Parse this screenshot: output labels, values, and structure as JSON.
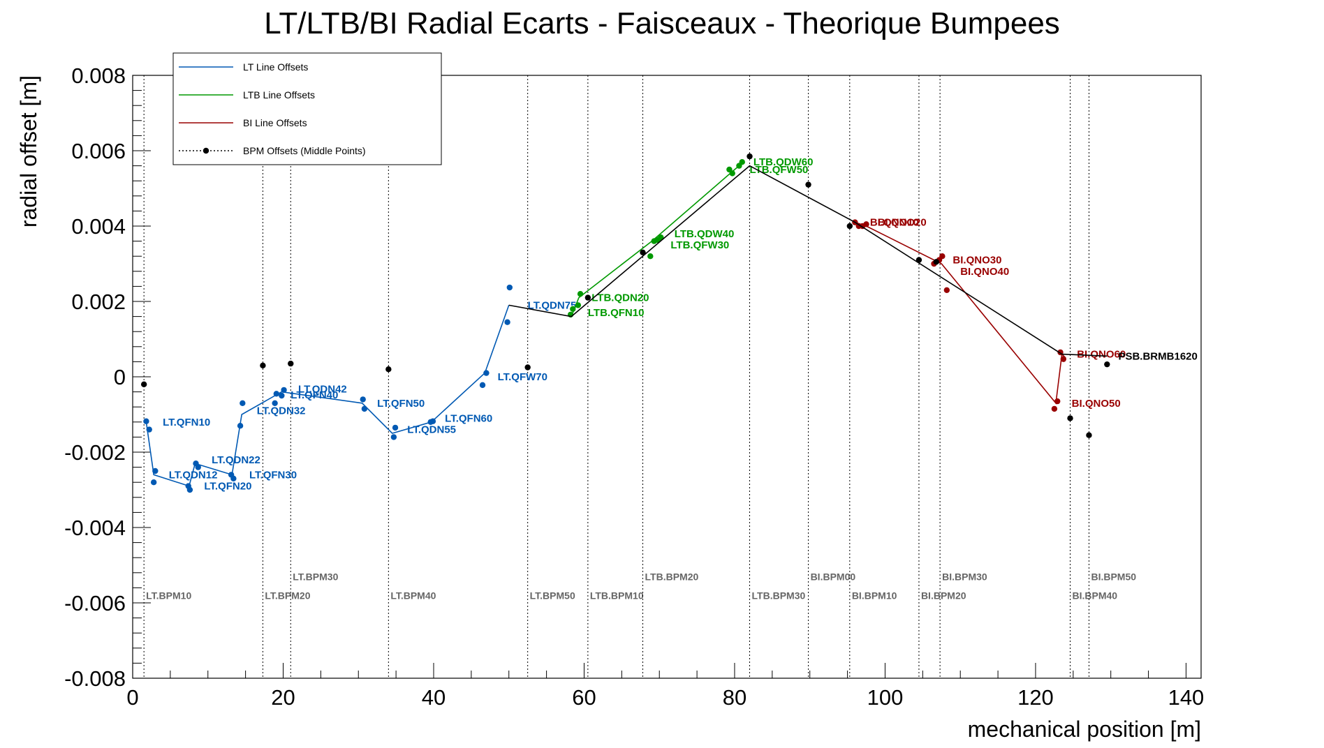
{
  "chart_data": {
    "type": "line",
    "title": "LT/LTB/BI Radial Ecarts - Faisceaux - Theorique Bumpees",
    "xlabel": "mechanical position [m]",
    "ylabel": "radial offset [m]",
    "xlim": [
      0,
      142
    ],
    "ylim": [
      -0.008,
      0.008
    ],
    "x_ticks": [
      0,
      20,
      40,
      60,
      80,
      100,
      120,
      140
    ],
    "x_tick_labels": [
      "0",
      "20",
      "40",
      "60",
      "80",
      "100",
      "120",
      "140"
    ],
    "y_ticks": [
      -0.008,
      -0.006,
      -0.004,
      -0.002,
      0,
      0.002,
      0.004,
      0.006,
      0.008
    ],
    "y_tick_labels": [
      "-0.008",
      "-0.006",
      "-0.004",
      "-0.002",
      "0",
      "0.002",
      "0.004",
      "0.006",
      "0.008"
    ],
    "grid": false,
    "legend_position": "top-left",
    "legend": [
      {
        "label": "LT Line Offsets",
        "color": "#0059b3",
        "style": "line"
      },
      {
        "label": "LTB Line Offsets",
        "color": "#009900",
        "style": "line"
      },
      {
        "label": "BI Line Offsets",
        "color": "#990000",
        "style": "line"
      },
      {
        "label": "BPM Offsets (Middle Points)",
        "color": "#000000",
        "style": "dotted-marker"
      }
    ],
    "series": [
      {
        "name": "LT Line Offsets",
        "color": "#0059b3",
        "line": [
          [
            1.8,
            -0.0012
          ],
          [
            2.8,
            -0.0026
          ],
          [
            7.5,
            -0.0029
          ],
          [
            8.3,
            -0.0023
          ],
          [
            13.2,
            -0.0026
          ],
          [
            14.5,
            -0.001
          ],
          [
            19.8,
            -0.0004
          ],
          [
            30.5,
            -0.0007
          ],
          [
            34.5,
            -0.0015
          ],
          [
            39.7,
            -0.0012
          ],
          [
            46.8,
            0.0001
          ],
          [
            50.0,
            0.0019
          ]
        ],
        "points": [
          [
            1.8,
            -0.00118
          ],
          [
            2.2,
            -0.0014
          ],
          [
            2.8,
            -0.0028
          ],
          [
            3.0,
            -0.0025
          ],
          [
            7.4,
            -0.0029
          ],
          [
            7.6,
            -0.003
          ],
          [
            8.4,
            -0.0023
          ],
          [
            8.7,
            -0.0024
          ],
          [
            13.1,
            -0.0026
          ],
          [
            13.4,
            -0.0027
          ],
          [
            14.3,
            -0.0013
          ],
          [
            14.6,
            -0.0007
          ],
          [
            18.9,
            -0.0007
          ],
          [
            19.1,
            -0.00045
          ],
          [
            19.8,
            -0.0005
          ],
          [
            20.1,
            -0.00035
          ],
          [
            30.6,
            -0.0006
          ],
          [
            30.8,
            -0.00085
          ],
          [
            34.7,
            -0.0016
          ],
          [
            34.9,
            -0.00135
          ],
          [
            39.6,
            -0.0012
          ],
          [
            39.9,
            -0.00118
          ],
          [
            46.5,
            -0.00022
          ],
          [
            47.0,
            0.0001
          ],
          [
            49.8,
            0.00145
          ],
          [
            50.1,
            0.00237
          ]
        ],
        "labels": [
          {
            "text": "LT.QFN10",
            "x": 4.0,
            "y": -0.0012
          },
          {
            "text": "LT.QDN12",
            "x": 4.8,
            "y": -0.0026
          },
          {
            "text": "LT.QFN20",
            "x": 9.5,
            "y": -0.0029
          },
          {
            "text": "LT.QDN22",
            "x": 10.5,
            "y": -0.0022
          },
          {
            "text": "LT.QFN30",
            "x": 15.5,
            "y": -0.0026
          },
          {
            "text": "LT.QDN32",
            "x": 16.5,
            "y": -0.0009
          },
          {
            "text": "LT.QDN42",
            "x": 22.0,
            "y": -0.00032
          },
          {
            "text": "LT.QFN40",
            "x": 21.0,
            "y": -0.00048
          },
          {
            "text": "LT.QFN50",
            "x": 32.5,
            "y": -0.0007
          },
          {
            "text": "LT.QDN55",
            "x": 36.5,
            "y": -0.0014
          },
          {
            "text": "LT.QFN60",
            "x": 41.5,
            "y": -0.0011
          },
          {
            "text": "LT.QFW70",
            "x": 48.5,
            "y": 0.0
          },
          {
            "text": "LT.QDN75",
            "x": 52.5,
            "y": 0.0019
          }
        ]
      },
      {
        "name": "LTB Line Offsets",
        "color": "#009900",
        "line": [
          [
            58.3,
            0.0016
          ],
          [
            59.3,
            0.0021
          ],
          [
            69.0,
            0.0036
          ],
          [
            80.0,
            0.0055
          ],
          [
            81.2,
            0.0057
          ]
        ],
        "points": [
          [
            58.2,
            0.00165
          ],
          [
            58.5,
            0.0018
          ],
          [
            59.2,
            0.0019
          ],
          [
            59.5,
            0.0022
          ],
          [
            68.8,
            0.0032
          ],
          [
            69.3,
            0.0036
          ],
          [
            69.8,
            0.00363
          ],
          [
            70.2,
            0.0037
          ],
          [
            79.3,
            0.0055
          ],
          [
            79.7,
            0.0054
          ],
          [
            80.6,
            0.0056
          ],
          [
            81.0,
            0.0057
          ]
        ],
        "labels": [
          {
            "text": "LTB.QDN20",
            "x": 61.0,
            "y": 0.0021
          },
          {
            "text": "LTB.QFN10",
            "x": 60.5,
            "y": 0.0017
          },
          {
            "text": "LTB.QDW40",
            "x": 72.0,
            "y": 0.0038
          },
          {
            "text": "LTB.QFW30",
            "x": 71.5,
            "y": 0.0035
          },
          {
            "text": "LTB.QDW60",
            "x": 82.5,
            "y": 0.0057
          },
          {
            "text": "LTB.QFW50",
            "x": 82.0,
            "y": 0.0055
          }
        ]
      },
      {
        "name": "BI Line Offsets",
        "color": "#990000",
        "line": [
          [
            96.0,
            0.0041
          ],
          [
            97.5,
            0.004
          ],
          [
            107.5,
            0.003
          ],
          [
            122.7,
            -0.0007
          ],
          [
            123.5,
            0.0006
          ],
          [
            124.0,
            0.0005
          ]
        ],
        "points": [
          [
            96.0,
            0.0041
          ],
          [
            96.5,
            0.004
          ],
          [
            97.0,
            0.004
          ],
          [
            97.5,
            0.00405
          ],
          [
            106.5,
            0.003
          ],
          [
            107.2,
            0.0031
          ],
          [
            107.6,
            0.0032
          ],
          [
            108.2,
            0.0023
          ],
          [
            122.5,
            -0.00085
          ],
          [
            122.9,
            -0.00065
          ],
          [
            123.3,
            0.00065
          ],
          [
            123.7,
            0.00047
          ]
        ],
        "labels": [
          {
            "text": "BI.QNO10",
            "x": 98.0,
            "y": 0.0041
          },
          {
            "text": "BI.QNO20",
            "x": 99.0,
            "y": 0.0041
          },
          {
            "text": "BI.QNO30",
            "x": 109.0,
            "y": 0.0031
          },
          {
            "text": "BI.QNO40",
            "x": 110.0,
            "y": 0.0028
          },
          {
            "text": "BI.QNO50",
            "x": 124.8,
            "y": -0.0007
          },
          {
            "text": "BI.QNO60",
            "x": 125.5,
            "y": 0.0006
          }
        ]
      },
      {
        "name": "BPM Offsets (Middle Points)",
        "color": "#000000",
        "line": [
          [
            50.0,
            0.0019
          ],
          [
            58.3,
            0.0016
          ],
          [
            82.0,
            0.0056
          ],
          [
            96.0,
            0.0041
          ],
          [
            123.5,
            0.0006
          ],
          [
            129.5,
            0.00055
          ]
        ],
        "points": [
          [
            1.5,
            -0.0002
          ],
          [
            17.3,
            0.0003
          ],
          [
            21.0,
            0.00035
          ],
          [
            34.0,
            0.0002
          ],
          [
            52.5,
            0.00025
          ],
          [
            60.5,
            0.0021
          ],
          [
            67.8,
            0.0033
          ],
          [
            82.0,
            0.00585
          ],
          [
            89.8,
            0.0051
          ],
          [
            95.3,
            0.004
          ],
          [
            104.5,
            0.0031
          ],
          [
            106.8,
            0.00305
          ],
          [
            124.6,
            -0.0011
          ],
          [
            127.1,
            -0.00155
          ],
          [
            129.5,
            0.00033
          ]
        ],
        "labels": [
          {
            "text": "PSB.BRMB1620",
            "x": 131.0,
            "y": 0.00055
          }
        ]
      }
    ],
    "bpm_markers": [
      {
        "label": "LT.BPM10",
        "x": 1.5,
        "y": -0.0059
      },
      {
        "label": "LT.BPM20",
        "x": 17.3,
        "y": -0.0059
      },
      {
        "label": "LT.BPM30",
        "x": 21.0,
        "y": -0.0054
      },
      {
        "label": "LT.BPM40",
        "x": 34.0,
        "y": -0.0059
      },
      {
        "label": "LT.BPM50",
        "x": 52.5,
        "y": -0.0059
      },
      {
        "label": "LTB.BPM10",
        "x": 60.5,
        "y": -0.0059
      },
      {
        "label": "LTB.BPM20",
        "x": 67.8,
        "y": -0.0054
      },
      {
        "label": "LTB.BPM30",
        "x": 82.0,
        "y": -0.0059
      },
      {
        "label": "BI.BPM00",
        "x": 89.8,
        "y": -0.0054
      },
      {
        "label": "BI.BPM10",
        "x": 95.3,
        "y": -0.0059
      },
      {
        "label": "BI.BPM20",
        "x": 104.5,
        "y": -0.0059
      },
      {
        "label": "BI.BPM30",
        "x": 107.3,
        "y": -0.0054
      },
      {
        "label": "BI.BPM40",
        "x": 124.6,
        "y": -0.0059
      },
      {
        "label": "BI.BPM50",
        "x": 127.1,
        "y": -0.0054
      }
    ]
  }
}
